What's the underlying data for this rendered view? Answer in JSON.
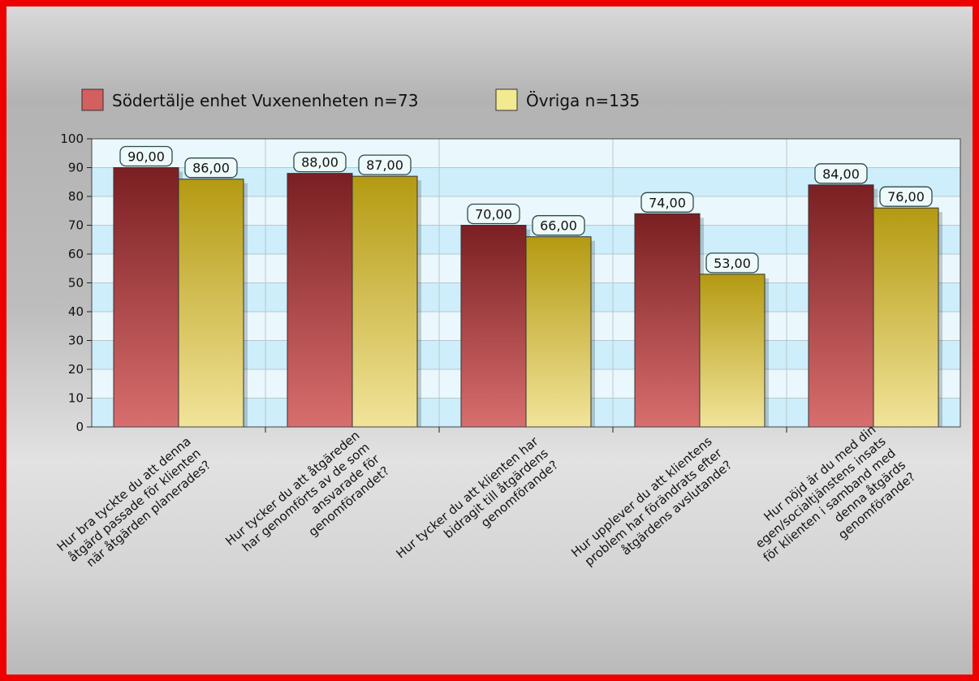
{
  "chart_data": {
    "type": "bar",
    "categories": [
      [
        "Hur bra tyckte du att denna",
        "åtgärd passade för klienten",
        "när åtgärden planerades?"
      ],
      [
        "Hur tycker du att åtgäreden",
        "har genomförts av de som",
        "ansvarade för",
        "genomförandet?"
      ],
      [
        "Hur tycker du att klienten har",
        "bidragit till åtgärdens",
        "genomförande?"
      ],
      [
        "Hur upplever du att klientens",
        "problem har förändrats efter",
        "åtgärdens avslutande?"
      ],
      [
        "Hur nöjd är du med din",
        "egen/socialtjänstens insats",
        "för klienten i samband med",
        "denna åtgärds",
        "genomförande?"
      ]
    ],
    "series": [
      {
        "name": "Södertälje enhet Vuxenenheten n=73",
        "values": [
          90,
          88,
          70,
          74,
          84
        ],
        "labels": [
          "90,00",
          "88,00",
          "70,00",
          "74,00",
          "84,00"
        ]
      },
      {
        "name": "Övriga n=135",
        "values": [
          86,
          87,
          66,
          53,
          76
        ],
        "labels": [
          "86,00",
          "87,00",
          "66,00",
          "53,00",
          "76,00"
        ]
      }
    ],
    "ylim": [
      0,
      100
    ],
    "yticks": [
      "0",
      "10",
      "20",
      "30",
      "40",
      "50",
      "60",
      "70",
      "80",
      "90",
      "100"
    ],
    "grid": true,
    "legend_position": "top-left"
  },
  "colors": {
    "series1_top": "#7a1f22",
    "series1_bottom": "#d86e6e",
    "series2_top": "#b49a12",
    "series2_bottom": "#f1e49a",
    "legend_swatch1": "#d45f5f",
    "legend_swatch2": "#f3e98f",
    "plot_band_light": "#eaf7fc",
    "plot_band_dark": "#cdeefa",
    "value_label_bg": "#eef9fa"
  }
}
